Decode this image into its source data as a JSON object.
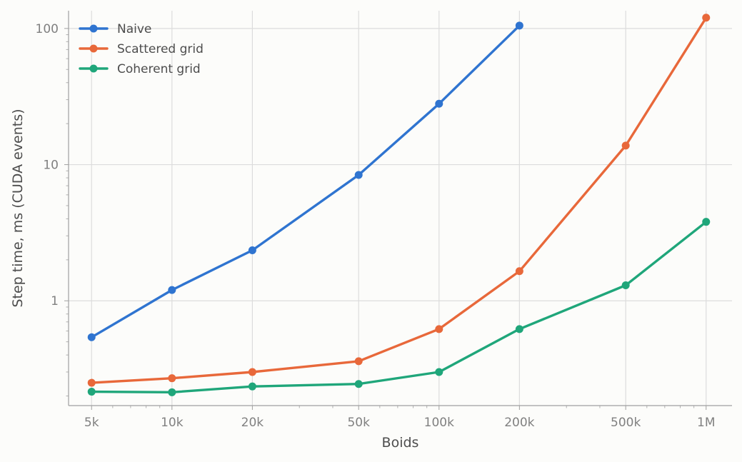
{
  "chart_data": {
    "type": "line",
    "xscale": "log",
    "yscale": "log",
    "xlabel": "Boids",
    "ylabel": "Step time, ms (CUDA events)",
    "x": [
      5000,
      10000,
      20000,
      50000,
      100000,
      200000,
      500000,
      1000000
    ],
    "x_tick_labels": [
      "5k",
      "10k",
      "20k",
      "50k",
      "100k",
      "200k",
      "500k",
      "1M"
    ],
    "y_ticks": [
      1,
      10,
      100
    ],
    "y_tick_labels": [
      "1",
      "10",
      "100"
    ],
    "xlim": [
      4100,
      1250000
    ],
    "ylim": [
      0.17,
      135
    ],
    "grid": true,
    "legend_position": "top-left",
    "series": [
      {
        "name": "Naive",
        "color": "#2f74d0",
        "points": [
          [
            5000,
            0.54
          ],
          [
            10000,
            1.2
          ],
          [
            20000,
            2.35
          ],
          [
            50000,
            8.4
          ],
          [
            100000,
            28
          ],
          [
            200000,
            105
          ]
        ]
      },
      {
        "name": "Scattered grid",
        "color": "#e8683a",
        "points": [
          [
            5000,
            0.25
          ],
          [
            10000,
            0.27
          ],
          [
            20000,
            0.3
          ],
          [
            50000,
            0.36
          ],
          [
            100000,
            0.62
          ],
          [
            200000,
            1.65
          ],
          [
            500000,
            13.8
          ],
          [
            1000000,
            120
          ]
        ]
      },
      {
        "name": "Coherent grid",
        "color": "#1fa67a",
        "points": [
          [
            5000,
            0.215
          ],
          [
            10000,
            0.213
          ],
          [
            20000,
            0.235
          ],
          [
            50000,
            0.245
          ],
          [
            100000,
            0.3
          ],
          [
            200000,
            0.62
          ],
          [
            500000,
            1.3
          ],
          [
            1000000,
            3.8
          ]
        ]
      }
    ]
  }
}
